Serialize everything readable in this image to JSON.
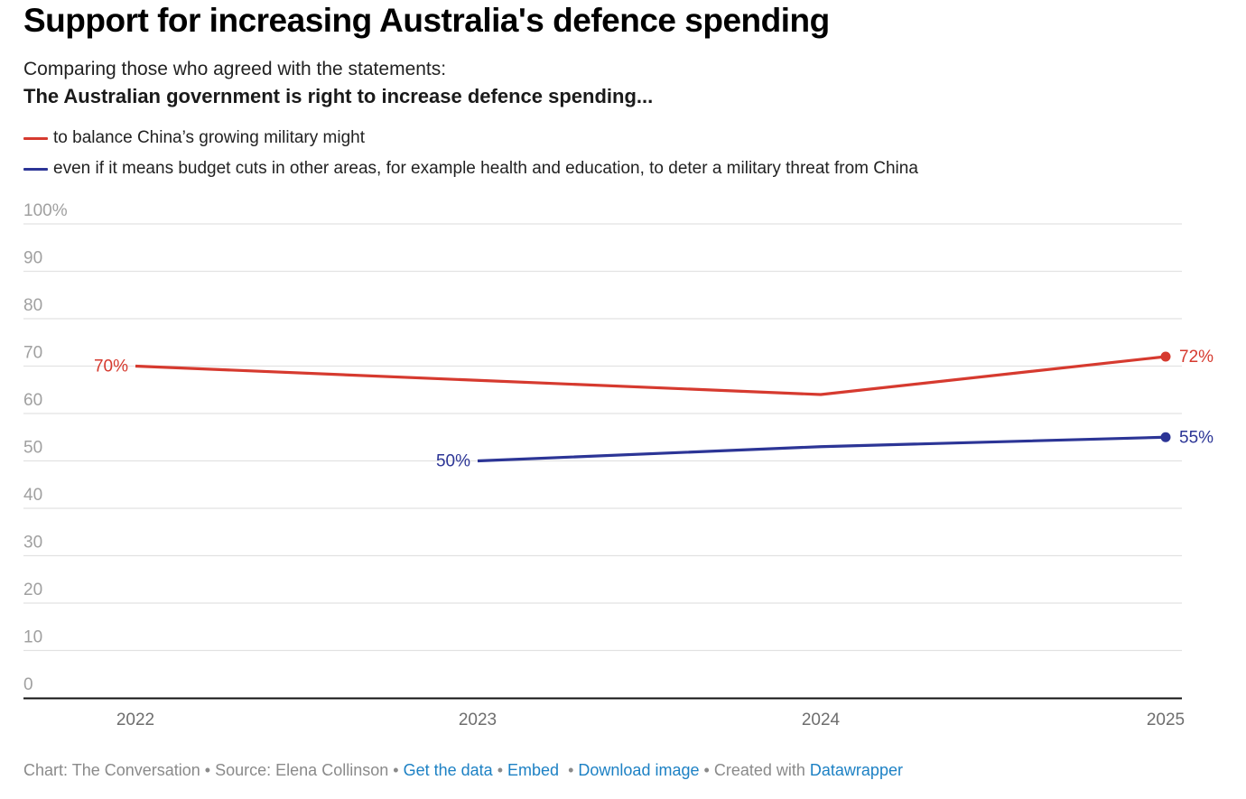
{
  "header": {
    "title": "Support for increasing Australia's defence spending",
    "subtitle": "Comparing those who agreed with the statements:",
    "subtitle_bold": "The Australian government is right to increase defence spending..."
  },
  "legend": [
    {
      "label": "to balance China’s growing military might",
      "color": "#d63a2f"
    },
    {
      "label": "even if it means budget cuts in other areas, for example health and education, to deter a military threat from China",
      "color": "#2c3596"
    }
  ],
  "footer": {
    "chart_credit": "Chart: The Conversation",
    "source": "Source: Elena Collinson",
    "get_data": "Get the data",
    "embed": "Embed",
    "download": "Download image",
    "created_with": "Created with",
    "datawrapper": "Datawrapper",
    "separator": "•"
  },
  "colors": {
    "red_series": "#d63a2f",
    "blue_series": "#2c3596",
    "gridline": "#e2e2e2",
    "axis_label": "#a0a0a0",
    "x_tick": "#6e6e6e",
    "link": "#1d81c4"
  },
  "chart_data": {
    "type": "line",
    "title": "Support for increasing Australia's defence spending",
    "xlabel": "",
    "ylabel": "",
    "x": [
      "2022",
      "2023",
      "2024",
      "2025"
    ],
    "ylim": [
      0,
      100
    ],
    "yticks": [
      0,
      10,
      20,
      30,
      40,
      50,
      60,
      70,
      80,
      90,
      100
    ],
    "ytick_labels": [
      "0",
      "10",
      "20",
      "30",
      "40",
      "50",
      "60",
      "70",
      "80",
      "90",
      "100%"
    ],
    "grid": true,
    "legend_position": "top-left",
    "series": [
      {
        "name": "to balance China’s growing military might",
        "color": "#d63a2f",
        "values": [
          70,
          67,
          64,
          72
        ],
        "labels": [
          {
            "index": 0,
            "text": "70%",
            "side": "left"
          },
          {
            "index": 3,
            "text": "72%",
            "side": "right"
          }
        ]
      },
      {
        "name": "even if it means budget cuts in other areas, for example health and education, to deter a military threat from China",
        "color": "#2c3596",
        "values": [
          null,
          50,
          53,
          55
        ],
        "labels": [
          {
            "index": 1,
            "text": "50%",
            "side": "left"
          },
          {
            "index": 3,
            "text": "55%",
            "side": "right"
          }
        ]
      }
    ]
  }
}
